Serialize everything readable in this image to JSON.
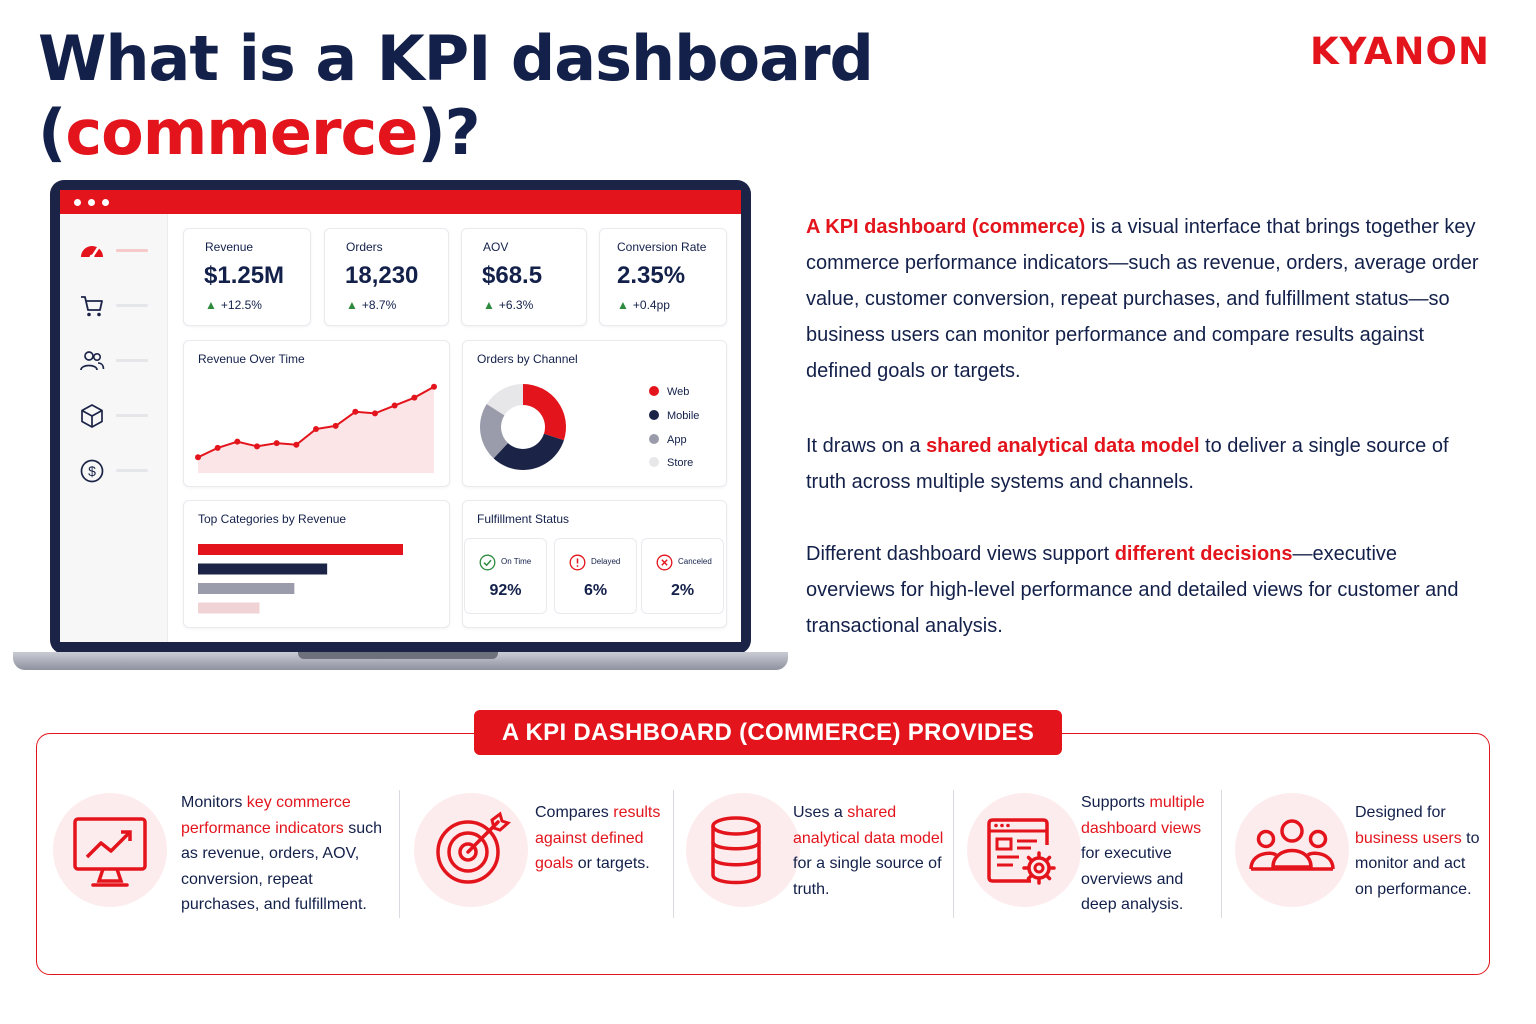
{
  "title": {
    "line1": "What is a KPI dashboard",
    "open_paren": "(",
    "highlight": "commerce",
    "close": ")?"
  },
  "brand": {
    "logo_text": "KYANON",
    "accent_color": "#e3141c",
    "navy_color": "#13204a"
  },
  "dashboard": {
    "sidebar_icons": [
      "speedometer-icon",
      "cart-icon",
      "users-icon",
      "box-icon",
      "dollar-icon"
    ],
    "kpis": [
      {
        "label": "Revenue",
        "value": "$1.25M",
        "delta": "+12.5%"
      },
      {
        "label": "Orders",
        "value": "18,230",
        "delta": "+8.7%"
      },
      {
        "label": "AOV",
        "value": "$68.5",
        "delta": "+6.3%"
      },
      {
        "label": "Conversion Rate",
        "value": "2.35%",
        "delta": "+0.4pp"
      }
    ],
    "revenue_chart_title": "Revenue Over Time",
    "channel_chart_title": "Orders by Channel",
    "channel_legend": [
      "Web",
      "Mobile",
      "App",
      "Store"
    ],
    "categories_title": "Top Categories by Revenue",
    "fulfillment_title": "Fulfillment Status",
    "fulfillment": [
      {
        "label": "On Time",
        "value": "92%"
      },
      {
        "label": "Delayed",
        "value": "6%"
      },
      {
        "label": "Canceled",
        "value": "2%"
      }
    ]
  },
  "chart_data": [
    {
      "type": "line",
      "title": "Revenue Over Time",
      "values": [
        10,
        16,
        20,
        17,
        19,
        18,
        28,
        30,
        39,
        38,
        43,
        48,
        55
      ],
      "ylim": [
        0,
        65
      ],
      "color": "#e3141c"
    },
    {
      "type": "pie",
      "title": "Orders by Channel",
      "categories": [
        "Web",
        "Mobile",
        "App",
        "Store"
      ],
      "values": [
        30,
        32,
        22,
        16
      ],
      "colors": [
        "#e3141c",
        "#1b2447",
        "#9a9cab",
        "#e7e7ea"
      ]
    },
    {
      "type": "bar",
      "title": "Top Categories by Revenue",
      "values": [
        100,
        63,
        47,
        30
      ],
      "colors": [
        "#e3141c",
        "#1b2447",
        "#9a9cab",
        "#f2d3d5"
      ]
    }
  ],
  "description": {
    "p1_highlight": "A KPI dashboard (commerce)",
    "p1_rest": " is a visual interface that brings together key commerce performance indicators—such as revenue, orders, average order value, customer conversion, repeat purchases, and fulfillment status—so business users can monitor performance and compare results against defined goals or targets.",
    "p2_start": "It draws on a ",
    "p2_highlight": "shared analytical data model",
    "p2_end": " to deliver a single source of truth across multiple systems and channels.",
    "p3_start": "Different dashboard views support ",
    "p3_highlight": "different decisions",
    "p3_end": "—executive overviews for high-level performance and detailed views for customer and transactional analysis."
  },
  "provides": {
    "title": "A KPI DASHBOARD (COMMERCE) PROVIDES",
    "features": [
      {
        "icon": "monitor-chart-icon",
        "pre": "Monitors ",
        "highlight": "key commerce performance indicators",
        "post": " such as revenue, orders, AOV, conversion, repeat purchases, and fulfillment."
      },
      {
        "icon": "target-icon",
        "pre": "Compares ",
        "highlight": "results against defined goals",
        "post": " or targets."
      },
      {
        "icon": "database-icon",
        "pre": "Uses a ",
        "highlight": "shared analytical data model",
        "post": " for a single source of truth."
      },
      {
        "icon": "dashboard-gear-icon",
        "pre": "Supports ",
        "highlight": "multiple dashboard views",
        "post": " for executive overviews and deep analysis."
      },
      {
        "icon": "users-group-icon",
        "pre": "Designed for ",
        "highlight": "business users",
        "post": " to monitor and act on performance."
      }
    ]
  }
}
